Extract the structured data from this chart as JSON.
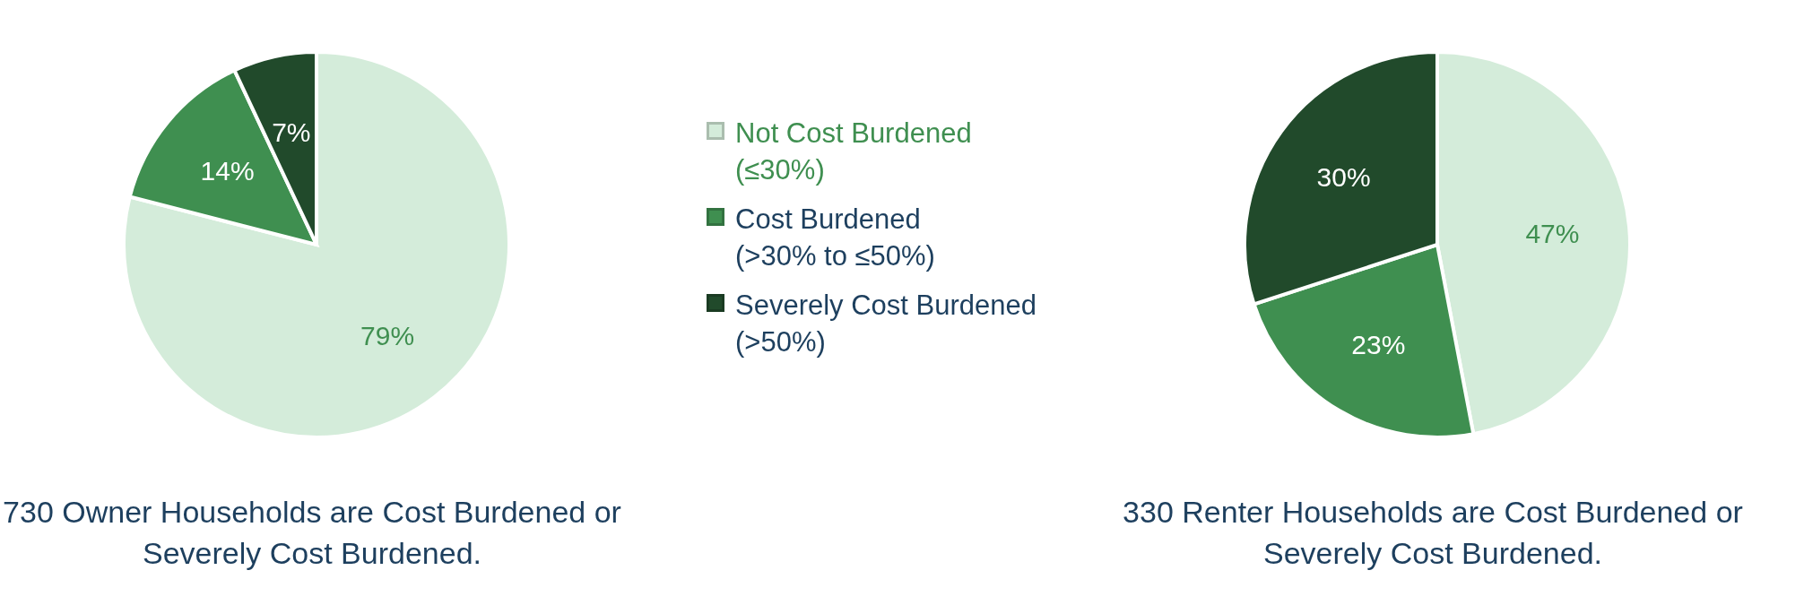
{
  "chart_data": [
    {
      "type": "pie",
      "title": "730 Owner Households are Cost Burdened or Severely Cost Burdened.",
      "categories": [
        "Not Cost Burdened (≤30%)",
        "Cost Burdened (>30% to ≤50%)",
        "Severely Cost Burdened (>50%)"
      ],
      "values": [
        79,
        14,
        7
      ],
      "colors": [
        "#d4ecda",
        "#3f8f50",
        "#214a2b"
      ],
      "value_labels": [
        "79%",
        "14%",
        "7%"
      ],
      "legend": "right"
    },
    {
      "type": "pie",
      "title": "330 Renter Households are Cost Burdened or Severely Cost Burdened.",
      "categories": [
        null,
        null,
        null
      ],
      "values": [
        47,
        23,
        30
      ],
      "colors": [
        "#d4ecda",
        "#3f8f50",
        "#214a2b"
      ],
      "value_labels": [
        "47%",
        "23%",
        "30%"
      ]
    }
  ]
}
